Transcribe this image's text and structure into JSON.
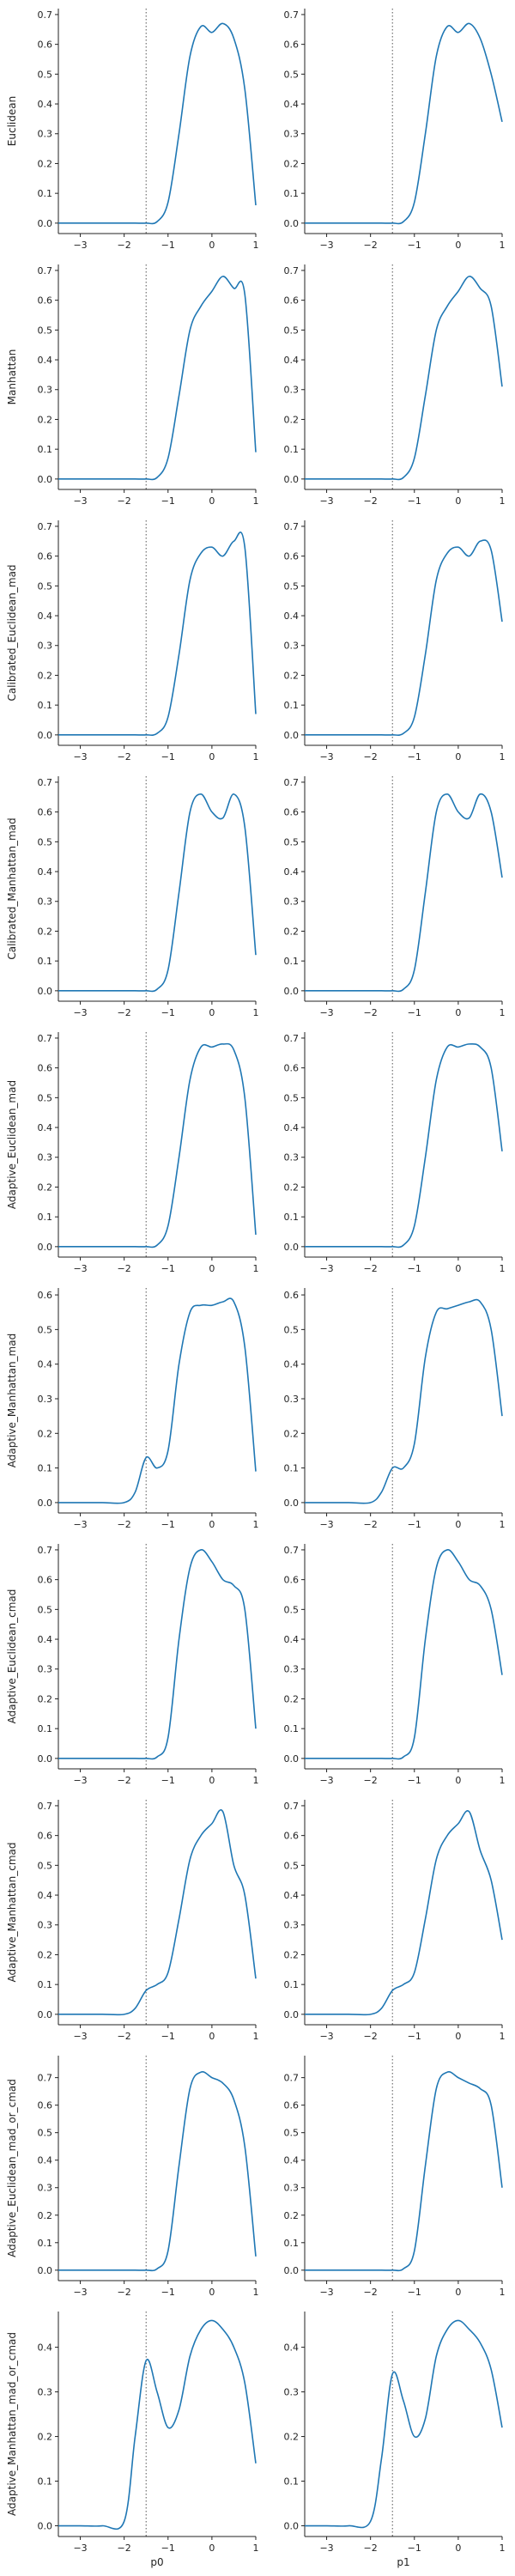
{
  "figure": {
    "col_labels": [
      "p0",
      "p1"
    ],
    "line_color": "#1f77b4",
    "ref_line_color": "#555555",
    "axis_color": "#222222"
  },
  "chart_data": {
    "type": "line",
    "xlim": [
      -3.5,
      1
    ],
    "x_ticks": [
      -3,
      -2,
      -1,
      0,
      1
    ],
    "ref_line_x": -1.5,
    "x": [
      -3.5,
      -3.0,
      -2.5,
      -2.0,
      -1.75,
      -1.5,
      -1.25,
      -1.0,
      -0.75,
      -0.5,
      -0.25,
      0.0,
      0.25,
      0.5,
      0.75,
      1.0
    ],
    "rows": [
      {
        "ylabel": "Euclidean",
        "ylim": [
          -0.035,
          0.72
        ],
        "y_ticks": [
          0.0,
          0.1,
          0.2,
          0.3,
          0.4,
          0.5,
          0.6,
          0.7
        ],
        "series": [
          [
            0,
            0,
            0,
            0,
            0,
            0,
            0.005,
            0.07,
            0.3,
            0.56,
            0.66,
            0.64,
            0.67,
            0.62,
            0.45,
            0.06
          ],
          [
            0,
            0,
            0,
            0,
            0,
            0,
            0.005,
            0.07,
            0.3,
            0.56,
            0.66,
            0.64,
            0.67,
            0.62,
            0.5,
            0.34
          ]
        ]
      },
      {
        "ylabel": "Manhattan",
        "ylim": [
          -0.035,
          0.72
        ],
        "y_ticks": [
          0.0,
          0.1,
          0.2,
          0.3,
          0.4,
          0.5,
          0.6,
          0.7
        ],
        "series": [
          [
            0,
            0,
            0,
            0,
            0,
            0,
            0.005,
            0.07,
            0.28,
            0.5,
            0.58,
            0.63,
            0.68,
            0.64,
            0.62,
            0.09
          ],
          [
            0,
            0,
            0,
            0,
            0,
            0,
            0.005,
            0.07,
            0.28,
            0.5,
            0.58,
            0.63,
            0.68,
            0.64,
            0.58,
            0.31
          ]
        ]
      },
      {
        "ylabel": "Calibrated_Euclidean_mad",
        "ylim": [
          -0.035,
          0.72
        ],
        "y_ticks": [
          0.0,
          0.1,
          0.2,
          0.3,
          0.4,
          0.5,
          0.6,
          0.7
        ],
        "series": [
          [
            0,
            0,
            0,
            0,
            0,
            0,
            0.005,
            0.06,
            0.27,
            0.52,
            0.61,
            0.63,
            0.6,
            0.65,
            0.63,
            0.07
          ],
          [
            0,
            0,
            0,
            0,
            0,
            0,
            0.005,
            0.06,
            0.27,
            0.52,
            0.61,
            0.63,
            0.6,
            0.65,
            0.62,
            0.38
          ]
        ]
      },
      {
        "ylabel": "Calibrated_Manhattan_mad",
        "ylim": [
          -0.035,
          0.72
        ],
        "y_ticks": [
          0.0,
          0.1,
          0.2,
          0.3,
          0.4,
          0.5,
          0.6,
          0.7
        ],
        "series": [
          [
            0,
            0,
            0,
            0,
            0,
            0,
            0.005,
            0.07,
            0.33,
            0.6,
            0.66,
            0.6,
            0.58,
            0.66,
            0.55,
            0.12
          ],
          [
            0,
            0,
            0,
            0,
            0,
            0,
            0.005,
            0.07,
            0.33,
            0.6,
            0.66,
            0.6,
            0.58,
            0.66,
            0.6,
            0.38
          ]
        ]
      },
      {
        "ylabel": "Adaptive_Euclidean_mad",
        "ylim": [
          -0.035,
          0.72
        ],
        "y_ticks": [
          0.0,
          0.1,
          0.2,
          0.3,
          0.4,
          0.5,
          0.6,
          0.7
        ],
        "series": [
          [
            0,
            0,
            0,
            0,
            0,
            0,
            0.005,
            0.07,
            0.3,
            0.56,
            0.67,
            0.67,
            0.68,
            0.66,
            0.5,
            0.04
          ],
          [
            0,
            0,
            0,
            0,
            0,
            0,
            0.005,
            0.07,
            0.3,
            0.56,
            0.67,
            0.67,
            0.68,
            0.67,
            0.6,
            0.32
          ]
        ]
      },
      {
        "ylabel": "Adaptive_Manhattan_mad",
        "ylim": [
          -0.03,
          0.62
        ],
        "y_ticks": [
          0.0,
          0.1,
          0.2,
          0.3,
          0.4,
          0.5,
          0.6
        ],
        "series": [
          [
            0,
            0,
            0,
            0,
            0.03,
            0.13,
            0.1,
            0.15,
            0.4,
            0.55,
            0.57,
            0.57,
            0.58,
            0.58,
            0.45,
            0.09
          ],
          [
            0,
            0,
            0,
            0,
            0.03,
            0.1,
            0.1,
            0.17,
            0.42,
            0.55,
            0.56,
            0.57,
            0.58,
            0.58,
            0.5,
            0.25
          ]
        ]
      },
      {
        "ylabel": "Adaptive_Euclidean_cmad",
        "ylim": [
          -0.035,
          0.72
        ],
        "y_ticks": [
          0.0,
          0.1,
          0.2,
          0.3,
          0.4,
          0.5,
          0.6,
          0.7
        ],
        "series": [
          [
            0,
            0,
            0,
            0,
            0,
            0,
            0.005,
            0.07,
            0.4,
            0.64,
            0.7,
            0.66,
            0.6,
            0.58,
            0.5,
            0.1
          ],
          [
            0,
            0,
            0,
            0,
            0,
            0,
            0.005,
            0.07,
            0.4,
            0.64,
            0.7,
            0.66,
            0.6,
            0.58,
            0.5,
            0.28
          ]
        ]
      },
      {
        "ylabel": "Adaptive_Manhattan_cmad",
        "ylim": [
          -0.035,
          0.72
        ],
        "y_ticks": [
          0.0,
          0.1,
          0.2,
          0.3,
          0.4,
          0.5,
          0.6,
          0.7
        ],
        "series": [
          [
            0,
            0,
            0,
            0,
            0.02,
            0.08,
            0.1,
            0.14,
            0.32,
            0.52,
            0.6,
            0.64,
            0.68,
            0.5,
            0.4,
            0.12
          ],
          [
            0,
            0,
            0,
            0,
            0.02,
            0.08,
            0.1,
            0.14,
            0.32,
            0.52,
            0.6,
            0.64,
            0.68,
            0.55,
            0.45,
            0.25
          ]
        ]
      },
      {
        "ylabel": "Adaptive_Euclidean_mad_or_cmad",
        "ylim": [
          -0.038,
          0.78
        ],
        "y_ticks": [
          0.0,
          0.1,
          0.2,
          0.3,
          0.4,
          0.5,
          0.6,
          0.7
        ],
        "series": [
          [
            0,
            0,
            0,
            0,
            0,
            0,
            0.005,
            0.07,
            0.38,
            0.66,
            0.72,
            0.7,
            0.68,
            0.62,
            0.45,
            0.05
          ],
          [
            0,
            0,
            0,
            0,
            0,
            0,
            0.005,
            0.07,
            0.38,
            0.66,
            0.72,
            0.7,
            0.68,
            0.66,
            0.6,
            0.3
          ]
        ]
      },
      {
        "ylabel": "Adaptive_Manhattan_mad_or_cmad",
        "ylim": [
          -0.024,
          0.48
        ],
        "y_ticks": [
          0.0,
          0.1,
          0.2,
          0.3,
          0.4
        ],
        "series": [
          [
            0,
            0,
            0,
            0.01,
            0.2,
            0.37,
            0.3,
            0.22,
            0.26,
            0.38,
            0.44,
            0.46,
            0.44,
            0.4,
            0.32,
            0.14
          ],
          [
            0,
            0,
            0,
            0.01,
            0.15,
            0.34,
            0.28,
            0.2,
            0.24,
            0.38,
            0.44,
            0.46,
            0.44,
            0.41,
            0.35,
            0.22
          ]
        ]
      }
    ]
  }
}
